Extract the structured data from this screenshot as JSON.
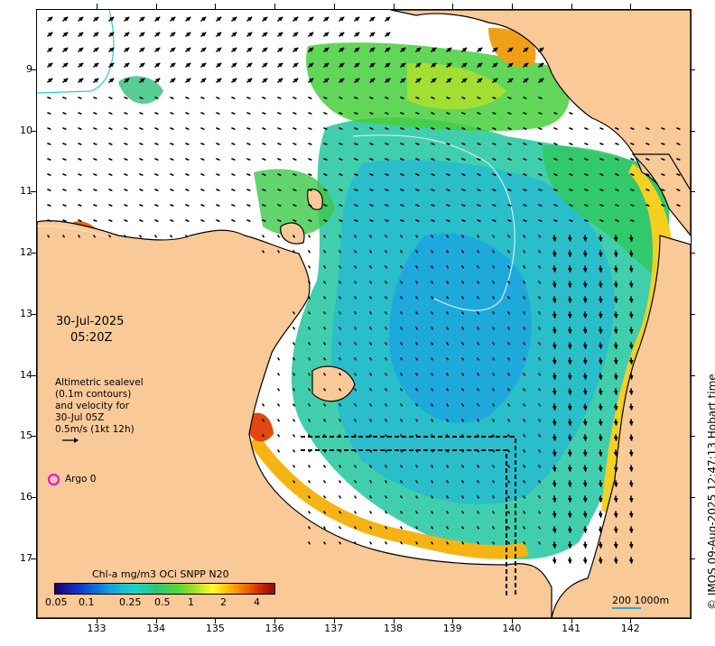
{
  "map": {
    "lat_labels": [
      "9",
      "10",
      "11",
      "12",
      "13",
      "14",
      "15",
      "16",
      "17"
    ],
    "lon_labels": [
      "133",
      "134",
      "135",
      "136",
      "137",
      "138",
      "139",
      "140",
      "141",
      "142"
    ],
    "date": "30-Jul-2025",
    "time": "05:20Z",
    "altimetry_lines": [
      "Altimetric sealevel",
      "(0.1m contours)",
      "and velocity for",
      "30-Jul 05Z",
      "0.5m/s (1kt 12h)"
    ],
    "argo_label": "Argo 0",
    "colorbar_title": "Chl-a mg/m3 OCi SNPP N20",
    "colorbar_labels": [
      "0.05",
      "0.1",
      "0.25",
      "0.5",
      "1",
      "2",
      "4"
    ],
    "scale_label": "200  1000m",
    "copyright": "© IMOS 09-Aug-2025 12:47:13 Hobart time",
    "colors": {
      "land": "#f9c998",
      "coast": "#000000",
      "argo": "#e800e8",
      "contour": "#31c8d8"
    }
  }
}
